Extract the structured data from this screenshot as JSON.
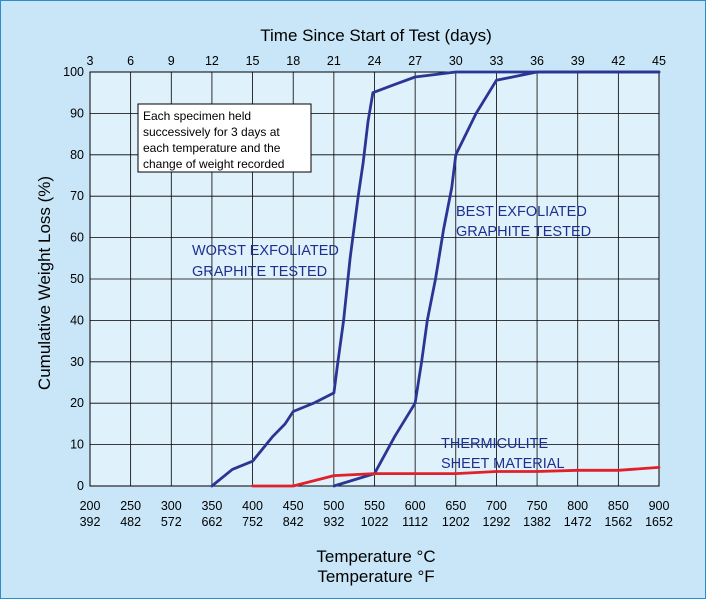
{
  "chart_data": {
    "type": "line",
    "top_axis": {
      "label": "Time Since Start of Test (days)",
      "ticks": [
        "3",
        "6",
        "9",
        "12",
        "15",
        "18",
        "21",
        "24",
        "27",
        "30",
        "33",
        "36",
        "39",
        "42",
        "45"
      ]
    },
    "y_axis": {
      "label": "Cumulative Weight Loss (%)",
      "range": [
        0,
        100
      ],
      "ticks": [
        "0",
        "10",
        "20",
        "30",
        "40",
        "50",
        "60",
        "70",
        "80",
        "90",
        "100"
      ]
    },
    "x_axis": {
      "range": [
        200,
        900
      ],
      "labels": [
        "Temperature °C",
        "Temperature °F"
      ],
      "celsius_ticks": [
        "200",
        "250",
        "300",
        "350",
        "400",
        "450",
        "500",
        "550",
        "600",
        "650",
        "700",
        "750",
        "800",
        "850",
        "900"
      ],
      "fahrenheit_ticks": [
        "392",
        "482",
        "572",
        "662",
        "752",
        "842",
        "932",
        "1022",
        "1112",
        "1202",
        "1292",
        "1382",
        "1472",
        "1562",
        "1652"
      ]
    },
    "grid": true,
    "note": [
      "Each specimen held",
      "successively for 3 days at",
      "each temperature and the",
      "change of weight recorded"
    ],
    "series": [
      {
        "name": "WORST EXFOLIATED GRAPHITE TESTED",
        "label_lines": [
          "WORST EXFOLIATED",
          "GRAPHITE TESTED"
        ],
        "color": "#2b3594",
        "points": [
          [
            350,
            0
          ],
          [
            375,
            4
          ],
          [
            400,
            6
          ],
          [
            425,
            12
          ],
          [
            440,
            15
          ],
          [
            450,
            18
          ],
          [
            475,
            20
          ],
          [
            500,
            22.5
          ],
          [
            505,
            30
          ],
          [
            512,
            40
          ],
          [
            520,
            55
          ],
          [
            530,
            70
          ],
          [
            536,
            78
          ],
          [
            542,
            88
          ],
          [
            548,
            95
          ],
          [
            575,
            97
          ],
          [
            600,
            98.8
          ],
          [
            650,
            100
          ],
          [
            900,
            100
          ]
        ]
      },
      {
        "name": "BEST EXFOLIATED GRAPHITE TESTED",
        "label_lines": [
          "BEST EXFOLIATED",
          "GRAPHITE TESTED"
        ],
        "color": "#2b3594",
        "points": [
          [
            500,
            0
          ],
          [
            550,
            3
          ],
          [
            575,
            12
          ],
          [
            600,
            20
          ],
          [
            608,
            30
          ],
          [
            615,
            40
          ],
          [
            625,
            50
          ],
          [
            635,
            62
          ],
          [
            645,
            72
          ],
          [
            650,
            80
          ],
          [
            675,
            90
          ],
          [
            700,
            98
          ],
          [
            725,
            99
          ],
          [
            750,
            100
          ],
          [
            900,
            100
          ]
        ]
      },
      {
        "name": "THERMICULITE SHEET MATERIAL",
        "label_lines": [
          "THERMICULITE",
          "SHEET MATERIAL"
        ],
        "color": "#e0202a",
        "points": [
          [
            400,
            0
          ],
          [
            450,
            0
          ],
          [
            500,
            2.5
          ],
          [
            550,
            3
          ],
          [
            600,
            3
          ],
          [
            650,
            3
          ],
          [
            700,
            3.5
          ],
          [
            750,
            3.5
          ],
          [
            800,
            3.8
          ],
          [
            850,
            3.8
          ],
          [
            900,
            4.5
          ]
        ]
      }
    ]
  }
}
